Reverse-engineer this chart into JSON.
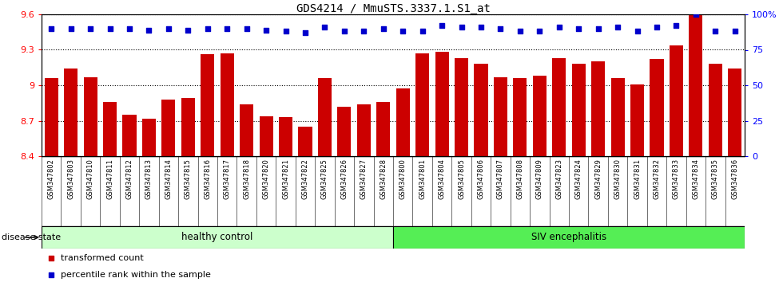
{
  "title": "GDS4214 / MmuSTS.3337.1.S1_at",
  "samples": [
    "GSM347802",
    "GSM347803",
    "GSM347810",
    "GSM347811",
    "GSM347812",
    "GSM347813",
    "GSM347814",
    "GSM347815",
    "GSM347816",
    "GSM347817",
    "GSM347818",
    "GSM347820",
    "GSM347821",
    "GSM347822",
    "GSM347825",
    "GSM347826",
    "GSM347827",
    "GSM347828",
    "GSM347800",
    "GSM347801",
    "GSM347804",
    "GSM347805",
    "GSM347806",
    "GSM347807",
    "GSM347808",
    "GSM347809",
    "GSM347823",
    "GSM347824",
    "GSM347829",
    "GSM347830",
    "GSM347831",
    "GSM347832",
    "GSM347833",
    "GSM347834",
    "GSM347835",
    "GSM347836"
  ],
  "bar_values": [
    9.06,
    9.14,
    9.07,
    8.86,
    8.75,
    8.72,
    8.88,
    8.89,
    9.26,
    9.27,
    8.84,
    8.74,
    8.73,
    8.65,
    9.06,
    8.82,
    8.84,
    8.86,
    8.97,
    9.27,
    9.28,
    9.23,
    9.18,
    9.07,
    9.06,
    9.08,
    9.23,
    9.18,
    9.2,
    9.06,
    9.01,
    9.22,
    9.34,
    9.59,
    9.18,
    9.14
  ],
  "percentile_values": [
    90,
    90,
    90,
    90,
    90,
    89,
    90,
    89,
    90,
    90,
    90,
    89,
    88,
    87,
    91,
    88,
    88,
    90,
    88,
    88,
    92,
    91,
    91,
    90,
    88,
    88,
    91,
    90,
    90,
    91,
    88,
    91,
    92,
    100,
    88,
    88
  ],
  "healthy_count": 18,
  "bar_color": "#cc0000",
  "dot_color": "#0000cc",
  "ylim_left": [
    8.4,
    9.6
  ],
  "yticks_left": [
    8.4,
    8.7,
    9.0,
    9.3,
    9.6
  ],
  "ytick_labels_left": [
    "8.4",
    "8.7",
    "9",
    "9.3",
    "9.6"
  ],
  "ylim_right": [
    0,
    100
  ],
  "yticks_right": [
    0,
    25,
    50,
    75,
    100
  ],
  "ytick_labels_right": [
    "0",
    "25",
    "50",
    "75",
    "100%"
  ],
  "healthy_label": "healthy control",
  "disease_label": "SIV encephalitis",
  "healthy_color": "#ccffcc",
  "disease_color": "#55ee55",
  "legend_bar": "transformed count",
  "legend_dot": "percentile rank within the sample",
  "xtick_bg": "#d8d8d8",
  "disease_state_text": "disease state"
}
